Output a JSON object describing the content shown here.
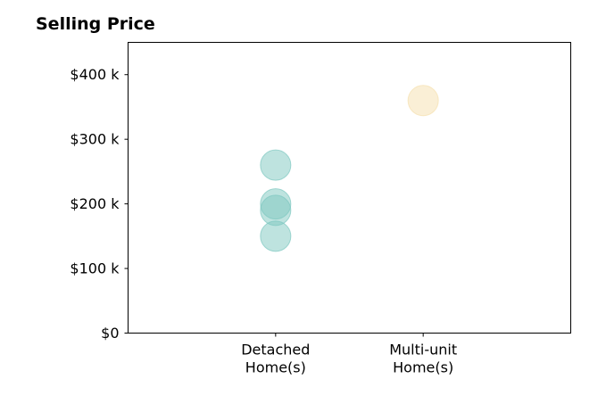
{
  "chart_data": {
    "type": "scatter",
    "title": "Selling Price",
    "xlabel": "",
    "ylabel": "",
    "categories": [
      "Detached\nHome(s)",
      "Multi-unit\nHome(s)"
    ],
    "ylim": [
      0,
      450000
    ],
    "yticks": [
      {
        "value": 0,
        "label": "$0"
      },
      {
        "value": 100000,
        "label": "$100 k"
      },
      {
        "value": 200000,
        "label": "$200 k"
      },
      {
        "value": 300000,
        "label": "$300 k"
      },
      {
        "value": 400000,
        "label": "$400 k"
      }
    ],
    "series": [
      {
        "category": "Detached\nHome(s)",
        "color": "#7ec8c0",
        "values": [
          260000,
          200000,
          190000,
          150000
        ]
      },
      {
        "category": "Multi-unit\nHome(s)",
        "color": "#f5dfae",
        "values": [
          360000
        ]
      }
    ],
    "grid": false,
    "legend": "none"
  }
}
